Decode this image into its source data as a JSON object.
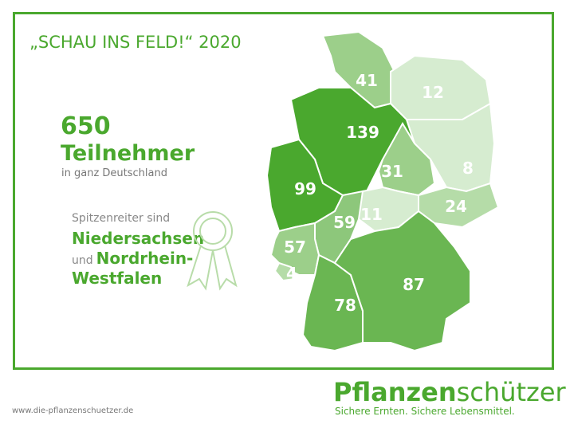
{
  "title": "„SCHAU INS FELD!“ 2020",
  "headline": {
    "number": "650",
    "label": "Teilnehmer",
    "sub": "in ganz Deutschland"
  },
  "leaders": {
    "intro": "Spitzenreiter sind",
    "first": "Niedersachsen",
    "and": "und",
    "second_a": "Nordrhein-",
    "second_b": "Westfalen"
  },
  "map": {
    "regions": [
      {
        "value": 41,
        "color": "#9ccf8a"
      },
      {
        "value": 12,
        "color": "#d6ecd0"
      },
      {
        "value": 8,
        "color": "#d6ecd0"
      },
      {
        "value": 139,
        "color": "#4aa82e"
      },
      {
        "value": 99,
        "color": "#4aa82e"
      },
      {
        "value": 31,
        "color": "#9ccf8a"
      },
      {
        "value": 24,
        "color": "#b5dca8"
      },
      {
        "value": 11,
        "color": "#d6ecd0"
      },
      {
        "value": 59,
        "color": "#8dc77b"
      },
      {
        "value": 57,
        "color": "#9ccf8a"
      },
      {
        "value": 4,
        "color": "#b5dca8"
      },
      {
        "value": 78,
        "color": "#6ab652"
      },
      {
        "value": 87,
        "color": "#6ab652"
      }
    ]
  },
  "footer": {
    "url": "www.die-pflanzenschuetzer.de",
    "logo_a": "Pflanzen",
    "logo_b": "schützer",
    "tagline": "Sichere Ernten. Sichere Lebensmittel."
  }
}
